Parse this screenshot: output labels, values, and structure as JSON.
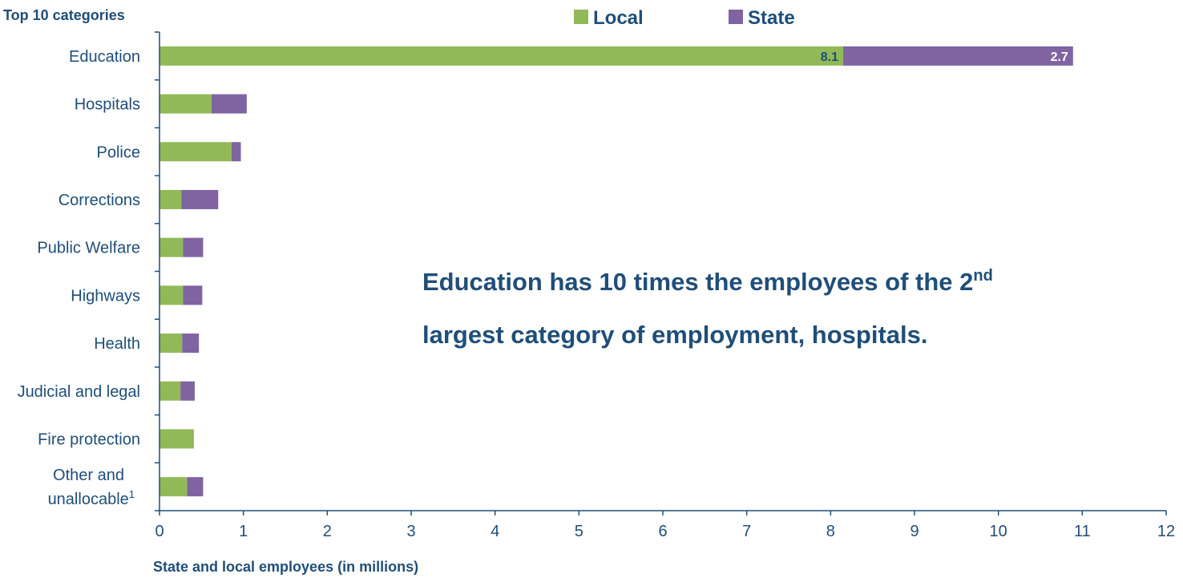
{
  "chart_data": {
    "type": "bar",
    "orientation": "horizontal",
    "stacked": true,
    "categories_title": "Top 10 categories",
    "categories": [
      [
        "Education"
      ],
      [
        "Hospitals"
      ],
      [
        "Police"
      ],
      [
        "Corrections"
      ],
      [
        "Public Welfare"
      ],
      [
        "Highways"
      ],
      [
        "Health"
      ],
      [
        "Judicial and legal"
      ],
      [
        "Fire protection"
      ],
      [
        "Other and",
        "unallocable",
        "1"
      ]
    ],
    "series": [
      {
        "name": "Local",
        "color": "#92b957",
        "values": [
          8.15,
          0.62,
          0.86,
          0.26,
          0.28,
          0.28,
          0.27,
          0.25,
          0.41,
          0.33
        ]
      },
      {
        "name": "State",
        "color": "#8064a2",
        "values": [
          2.74,
          0.42,
          0.11,
          0.44,
          0.24,
          0.23,
          0.2,
          0.17,
          0.0,
          0.19
        ]
      }
    ],
    "data_labels": [
      {
        "category_index": 0,
        "series_index": 0,
        "text": "8.1",
        "color": "#1f4e79"
      },
      {
        "category_index": 0,
        "series_index": 1,
        "text": "2.7",
        "color": "#ffffff"
      }
    ],
    "xlabel": "State and local employees (in millions)",
    "xlim": [
      0,
      12
    ],
    "xticks": [
      "0",
      "1",
      "2",
      "3",
      "4",
      "5",
      "6",
      "7",
      "8",
      "9",
      "10",
      "11",
      "12"
    ],
    "grid": false,
    "legend_position": "top",
    "annotation": {
      "line1": "Education has 10 times the employees of the 2",
      "line1_sup": "nd",
      "line2": "largest category of employment, hospitals."
    }
  }
}
